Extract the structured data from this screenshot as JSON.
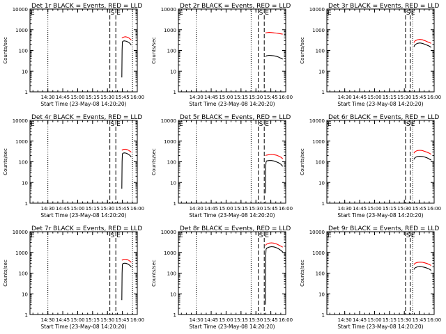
{
  "common": {
    "ylabel": "Counts/sec",
    "xlabel": "Start Time (23-May-08 14:20:20)",
    "xticks": [
      "14:30",
      "14:45",
      "15:00",
      "15:15",
      "15:30",
      "15:45",
      "16:00"
    ],
    "yticks": [
      "1",
      "10",
      "100",
      "1000",
      "10000"
    ],
    "flag_labels": [
      "E",
      "S",
      "E"
    ],
    "events_color": "#000000",
    "lld_color": "#ff0000"
  },
  "chart_data": [
    {
      "type": "line",
      "title": "Det 1r BLACK = Events, RED = LLD",
      "xlabel": "Start Time (23-May-08 14:20:20)",
      "ylabel": "Counts/sec",
      "xlim_hours": [
        14.2,
        16.0
      ],
      "ylim": [
        1,
        10000
      ],
      "yscale": "log",
      "markers": {
        "dotted": [
          14.5,
          15.92
        ],
        "dashed": [
          15.54,
          15.64
        ]
      },
      "series": [
        {
          "name": "Events",
          "color": "#000000",
          "x": [
            15.74,
            15.745,
            15.75,
            15.76,
            15.78,
            15.8,
            15.82,
            15.84,
            15.86,
            15.88,
            15.9
          ],
          "y": [
            5,
            100,
            260,
            280,
            290,
            285,
            275,
            260,
            240,
            215,
            180
          ]
        },
        {
          "name": "LLD",
          "color": "#ff0000",
          "x": [
            15.74,
            15.76,
            15.78,
            15.8,
            15.82,
            15.84,
            15.86,
            15.88,
            15.9
          ],
          "y": [
            400,
            430,
            450,
            460,
            450,
            430,
            400,
            360,
            320
          ]
        }
      ]
    },
    {
      "type": "line",
      "title": "Det 2r BLACK = Events, RED = LLD",
      "xlabel": "Start Time (23-May-08 14:20:20)",
      "ylabel": "Counts/sec",
      "xlim_hours": [
        14.2,
        16.0
      ],
      "ylim": [
        1,
        10000
      ],
      "yscale": "log",
      "markers": {
        "dotted": [
          14.5,
          15.42
        ],
        "dashed": [
          15.54,
          15.64
        ]
      },
      "series": [
        {
          "name": "Events",
          "color": "#000000",
          "x": [
            15.66,
            15.68,
            15.72,
            15.76,
            15.8,
            15.84,
            15.88,
            15.92,
            15.95
          ],
          "y": [
            50,
            55,
            58,
            57,
            55,
            52,
            48,
            42,
            38
          ]
        },
        {
          "name": "LLD",
          "color": "#ff0000",
          "x": [
            15.66,
            15.68,
            15.72,
            15.76,
            15.8,
            15.84,
            15.88,
            15.92,
            15.95
          ],
          "y": [
            700,
            720,
            740,
            730,
            710,
            690,
            660,
            630,
            610
          ]
        }
      ]
    },
    {
      "type": "line",
      "title": "Det 3r BLACK = Events, RED = LLD",
      "xlabel": "Start Time (23-May-08 14:20:20)",
      "ylabel": "Counts/sec",
      "xlim_hours": [
        14.2,
        16.0
      ],
      "ylim": [
        1,
        10000
      ],
      "yscale": "log",
      "markers": {
        "dotted": [
          15.64
        ],
        "dashed": [
          15.52,
          15.6
        ]
      },
      "series": [
        {
          "name": "Events",
          "color": "#000000",
          "x": [
            15.66,
            15.68,
            15.72,
            15.76,
            15.8,
            15.84,
            15.88,
            15.92,
            15.95
          ],
          "y": [
            150,
            190,
            220,
            230,
            220,
            200,
            180,
            160,
            140
          ]
        },
        {
          "name": "LLD",
          "color": "#ff0000",
          "x": [
            15.66,
            15.68,
            15.72,
            15.76,
            15.8,
            15.84,
            15.88,
            15.92,
            15.95
          ],
          "y": [
            240,
            290,
            330,
            340,
            330,
            300,
            270,
            240,
            220
          ]
        }
      ]
    },
    {
      "type": "line",
      "title": "Det 4r BLACK = Events, RED = LLD",
      "xlabel": "Start Time (23-May-08 14:20:20)",
      "ylabel": "Counts/sec",
      "xlim_hours": [
        14.2,
        16.0
      ],
      "ylim": [
        1,
        10000
      ],
      "yscale": "log",
      "markers": {
        "dotted": [
          14.5,
          15.92
        ],
        "dashed": [
          15.54,
          15.64
        ]
      },
      "series": [
        {
          "name": "Events",
          "color": "#000000",
          "x": [
            15.74,
            15.745,
            15.75,
            15.76,
            15.78,
            15.8,
            15.82,
            15.84,
            15.86,
            15.88,
            15.9
          ],
          "y": [
            5,
            100,
            240,
            260,
            270,
            265,
            255,
            240,
            220,
            200,
            170
          ]
        },
        {
          "name": "LLD",
          "color": "#ff0000",
          "x": [
            15.74,
            15.76,
            15.78,
            15.8,
            15.82,
            15.84,
            15.86,
            15.88,
            15.9
          ],
          "y": [
            360,
            390,
            400,
            405,
            395,
            375,
            350,
            320,
            290
          ]
        }
      ]
    },
    {
      "type": "line",
      "title": "Det 5r BLACK = Events, RED = LLD",
      "xlabel": "Start Time (23-May-08 14:20:20)",
      "ylabel": "Counts/sec",
      "xlim_hours": [
        14.2,
        16.0
      ],
      "ylim": [
        1,
        10000
      ],
      "yscale": "log",
      "markers": {
        "dotted": [
          14.5,
          15.42
        ],
        "dashed": [
          15.54,
          15.64
        ]
      },
      "series": [
        {
          "name": "Events",
          "color": "#000000",
          "x": [
            15.66,
            15.665,
            15.67,
            15.68,
            15.72,
            15.76,
            15.8,
            15.84,
            15.88,
            15.92,
            15.95
          ],
          "y": [
            3,
            60,
            100,
            110,
            115,
            115,
            110,
            100,
            90,
            75,
            60
          ]
        },
        {
          "name": "LLD",
          "color": "#ff0000",
          "x": [
            15.66,
            15.68,
            15.72,
            15.76,
            15.8,
            15.84,
            15.88,
            15.92,
            15.95
          ],
          "y": [
            200,
            210,
            220,
            225,
            220,
            210,
            190,
            165,
            140
          ]
        }
      ]
    },
    {
      "type": "line",
      "title": "Det 6r BLACK = Events, RED = LLD",
      "xlabel": "Start Time (23-May-08 14:20:20)",
      "ylabel": "Counts/sec",
      "xlim_hours": [
        14.2,
        16.0
      ],
      "ylim": [
        1,
        10000
      ],
      "yscale": "log",
      "markers": {
        "dotted": [
          15.64
        ],
        "dashed": [
          15.52,
          15.6
        ]
      },
      "series": [
        {
          "name": "Events",
          "color": "#000000",
          "x": [
            15.66,
            15.68,
            15.72,
            15.76,
            15.8,
            15.84,
            15.88,
            15.92,
            15.95
          ],
          "y": [
            130,
            160,
            180,
            185,
            180,
            170,
            155,
            135,
            120
          ]
        },
        {
          "name": "LLD",
          "color": "#ff0000",
          "x": [
            15.66,
            15.68,
            15.72,
            15.76,
            15.8,
            15.84,
            15.88,
            15.92,
            15.95
          ],
          "y": [
            260,
            310,
            350,
            360,
            350,
            320,
            290,
            260,
            230
          ]
        }
      ]
    },
    {
      "type": "line",
      "title": "Det 7r BLACK = Events, RED = LLD",
      "xlabel": "Start Time (23-May-08 14:20:20)",
      "ylabel": "Counts/sec",
      "xlim_hours": [
        14.2,
        16.0
      ],
      "ylim": [
        1,
        10000
      ],
      "yscale": "log",
      "markers": {
        "dotted": [
          14.5,
          15.92
        ],
        "dashed": [
          15.54,
          15.64
        ]
      },
      "series": [
        {
          "name": "Events",
          "color": "#000000",
          "x": [
            15.74,
            15.745,
            15.75,
            15.76,
            15.78,
            15.8,
            15.82,
            15.84,
            15.86,
            15.88,
            15.9
          ],
          "y": [
            5,
            100,
            260,
            290,
            300,
            300,
            290,
            275,
            255,
            230,
            195
          ]
        },
        {
          "name": "LLD",
          "color": "#ff0000",
          "x": [
            15.74,
            15.76,
            15.78,
            15.8,
            15.82,
            15.84,
            15.86,
            15.88,
            15.9
          ],
          "y": [
            420,
            450,
            470,
            470,
            460,
            440,
            410,
            370,
            330
          ]
        }
      ]
    },
    {
      "type": "line",
      "title": "Det 8r BLACK = Events, RED = LLD",
      "xlabel": "Start Time (23-May-08 14:20:20)",
      "ylabel": "Counts/sec",
      "xlim_hours": [
        14.2,
        16.0
      ],
      "ylim": [
        1,
        10000
      ],
      "yscale": "log",
      "markers": {
        "dotted": [
          14.5,
          15.42
        ],
        "dashed": [
          15.54,
          15.64
        ]
      },
      "series": [
        {
          "name": "Events",
          "color": "#000000",
          "x": [
            15.66,
            15.665,
            15.67,
            15.68,
            15.72,
            15.76,
            15.8,
            15.84,
            15.88,
            15.92,
            15.95
          ],
          "y": [
            3,
            700,
            1400,
            1600,
            1800,
            1900,
            1850,
            1700,
            1500,
            1250,
            1050
          ]
        },
        {
          "name": "LLD",
          "color": "#ff0000",
          "x": [
            15.66,
            15.68,
            15.72,
            15.76,
            15.8,
            15.84,
            15.88,
            15.92,
            15.95
          ],
          "y": [
            2200,
            2500,
            2800,
            2900,
            2800,
            2600,
            2300,
            2000,
            1800
          ]
        }
      ]
    },
    {
      "type": "line",
      "title": "Det 9r BLACK = Events, RED = LLD",
      "xlabel": "Start Time (23-May-08 14:20:20)",
      "ylabel": "Counts/sec",
      "xlim_hours": [
        14.2,
        16.0
      ],
      "ylim": [
        1,
        10000
      ],
      "yscale": "log",
      "markers": {
        "dotted": [
          15.64
        ],
        "dashed": [
          15.52,
          15.6
        ]
      },
      "series": [
        {
          "name": "Events",
          "color": "#000000",
          "x": [
            15.66,
            15.68,
            15.72,
            15.76,
            15.8,
            15.84,
            15.88,
            15.92,
            15.95
          ],
          "y": [
            150,
            180,
            200,
            205,
            200,
            190,
            175,
            155,
            135
          ]
        },
        {
          "name": "LLD",
          "color": "#ff0000",
          "x": [
            15.66,
            15.68,
            15.72,
            15.76,
            15.8,
            15.84,
            15.88,
            15.92,
            15.95
          ],
          "y": [
            260,
            300,
            330,
            340,
            335,
            315,
            290,
            260,
            235
          ]
        }
      ]
    }
  ]
}
